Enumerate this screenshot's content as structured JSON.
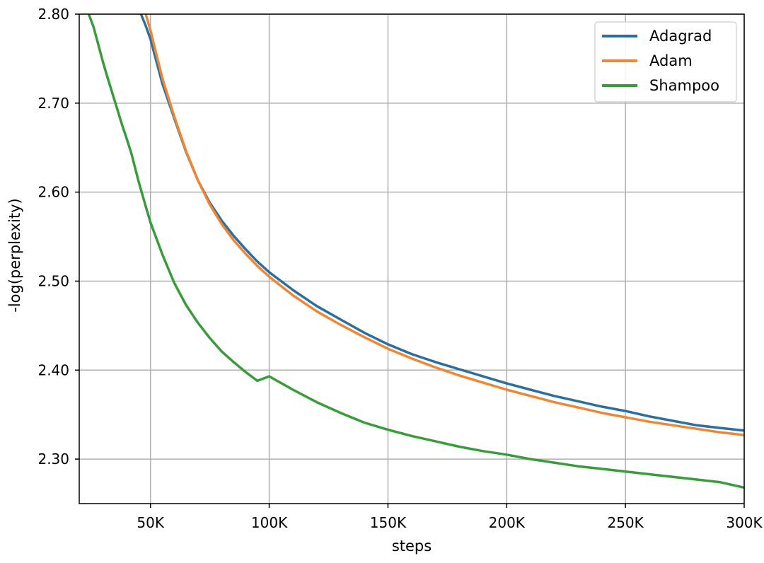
{
  "chart_data": {
    "type": "line",
    "xlabel": "steps",
    "ylabel": "-log(perplexity)",
    "xlim": [
      20000,
      300000
    ],
    "ylim": [
      2.25,
      2.8
    ],
    "x_ticks": [
      50000,
      100000,
      150000,
      200000,
      250000,
      300000
    ],
    "x_tick_labels": [
      "50K",
      "100K",
      "150K",
      "200K",
      "250K",
      "300K"
    ],
    "y_ticks": [
      2.3,
      2.4,
      2.5,
      2.6,
      2.7,
      2.8
    ],
    "y_tick_labels": [
      "2.30",
      "2.40",
      "2.50",
      "2.60",
      "2.70",
      "2.80"
    ],
    "grid": true,
    "legend_position": "top-right",
    "series": [
      {
        "name": "Adagrad",
        "color": "#2a6f9f",
        "x": [
          46000,
          48000,
          50000,
          52000,
          55000,
          60000,
          65000,
          70000,
          75000,
          80000,
          85000,
          90000,
          95000,
          100000,
          110000,
          120000,
          130000,
          140000,
          150000,
          160000,
          170000,
          180000,
          190000,
          200000,
          210000,
          220000,
          230000,
          240000,
          250000,
          260000,
          270000,
          280000,
          290000,
          300000
        ],
        "y": [
          2.8,
          2.787,
          2.772,
          2.752,
          2.722,
          2.683,
          2.645,
          2.613,
          2.588,
          2.568,
          2.551,
          2.536,
          2.522,
          2.51,
          2.49,
          2.472,
          2.457,
          2.442,
          2.429,
          2.418,
          2.409,
          2.401,
          2.393,
          2.385,
          2.378,
          2.371,
          2.365,
          2.359,
          2.354,
          2.348,
          2.343,
          2.338,
          2.335,
          2.332
        ]
      },
      {
        "name": "Adam",
        "color": "#ef8636",
        "x": [
          48000,
          50000,
          52000,
          55000,
          60000,
          65000,
          70000,
          75000,
          80000,
          85000,
          90000,
          95000,
          100000,
          110000,
          120000,
          130000,
          140000,
          150000,
          160000,
          170000,
          180000,
          190000,
          200000,
          210000,
          220000,
          230000,
          240000,
          250000,
          260000,
          270000,
          280000,
          290000,
          300000
        ],
        "y": [
          2.8,
          2.782,
          2.76,
          2.728,
          2.685,
          2.646,
          2.613,
          2.586,
          2.564,
          2.546,
          2.531,
          2.517,
          2.505,
          2.484,
          2.466,
          2.451,
          2.437,
          2.424,
          2.413,
          2.403,
          2.394,
          2.386,
          2.378,
          2.371,
          2.364,
          2.358,
          2.352,
          2.347,
          2.342,
          2.338,
          2.334,
          2.33,
          2.327
        ]
      },
      {
        "name": "Shampoo",
        "color": "#3a9b3a",
        "x": [
          24000,
          26000,
          28000,
          30000,
          32000,
          35000,
          38000,
          40000,
          42000,
          45000,
          48000,
          50000,
          55000,
          60000,
          65000,
          70000,
          75000,
          80000,
          85000,
          90000,
          95000,
          100000,
          110000,
          120000,
          130000,
          140000,
          150000,
          160000,
          170000,
          180000,
          190000,
          200000,
          210000,
          220000,
          230000,
          240000,
          250000,
          260000,
          270000,
          280000,
          290000,
          300000
        ],
        "y": [
          2.8,
          2.786,
          2.766,
          2.746,
          2.728,
          2.702,
          2.676,
          2.66,
          2.643,
          2.612,
          2.584,
          2.566,
          2.53,
          2.498,
          2.473,
          2.453,
          2.436,
          2.421,
          2.409,
          2.398,
          2.388,
          2.393,
          2.378,
          2.364,
          2.352,
          2.341,
          2.333,
          2.326,
          2.32,
          2.314,
          2.309,
          2.305,
          2.3,
          2.296,
          2.292,
          2.289,
          2.286,
          2.283,
          2.28,
          2.277,
          2.274,
          2.268
        ]
      }
    ]
  }
}
